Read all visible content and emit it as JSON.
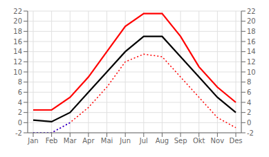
{
  "chart_data": {
    "type": "line",
    "categories": [
      "Jan",
      "Feb",
      "Mar",
      "Apr",
      "Mai",
      "Jun",
      "Jul",
      "Aug",
      "Sep",
      "Okt",
      "Nov",
      "Des"
    ],
    "series": [
      {
        "color": "#ff0000",
        "line_style": "solid",
        "values": [
          2.5,
          2.5,
          5.0,
          9.0,
          14.0,
          19.0,
          21.5,
          21.5,
          17.0,
          11.0,
          7.0,
          4.0
        ]
      },
      {
        "color": "#000000",
        "line_style": "solid",
        "values": [
          0.5,
          0.2,
          2.0,
          6.0,
          10.0,
          14.0,
          17.0,
          17.0,
          13.0,
          9.0,
          5.0,
          2.0
        ]
      },
      {
        "color": "#ff0000",
        "line_style": "dotted",
        "values": [
          -2.0,
          -2.0,
          0.0,
          3.0,
          7.0,
          12.0,
          13.5,
          13.0,
          9.0,
          5.0,
          1.0,
          -1.0
        ]
      },
      {
        "color": "#0000ff",
        "line_style": "dotted",
        "values": [
          -2.0,
          -2.0,
          0.0,
          null,
          null,
          null,
          null,
          null,
          null,
          null,
          null,
          null
        ]
      }
    ],
    "ylim": [
      -2,
      22
    ],
    "yticks": [
      -2,
      0,
      2,
      4,
      6,
      8,
      10,
      12,
      14,
      16,
      18,
      20,
      22
    ],
    "y2lim": [
      -2,
      22
    ],
    "y2ticks": [
      -2,
      0,
      2,
      4,
      6,
      8,
      10,
      12,
      14,
      16,
      18,
      20,
      22
    ],
    "grid": true
  }
}
